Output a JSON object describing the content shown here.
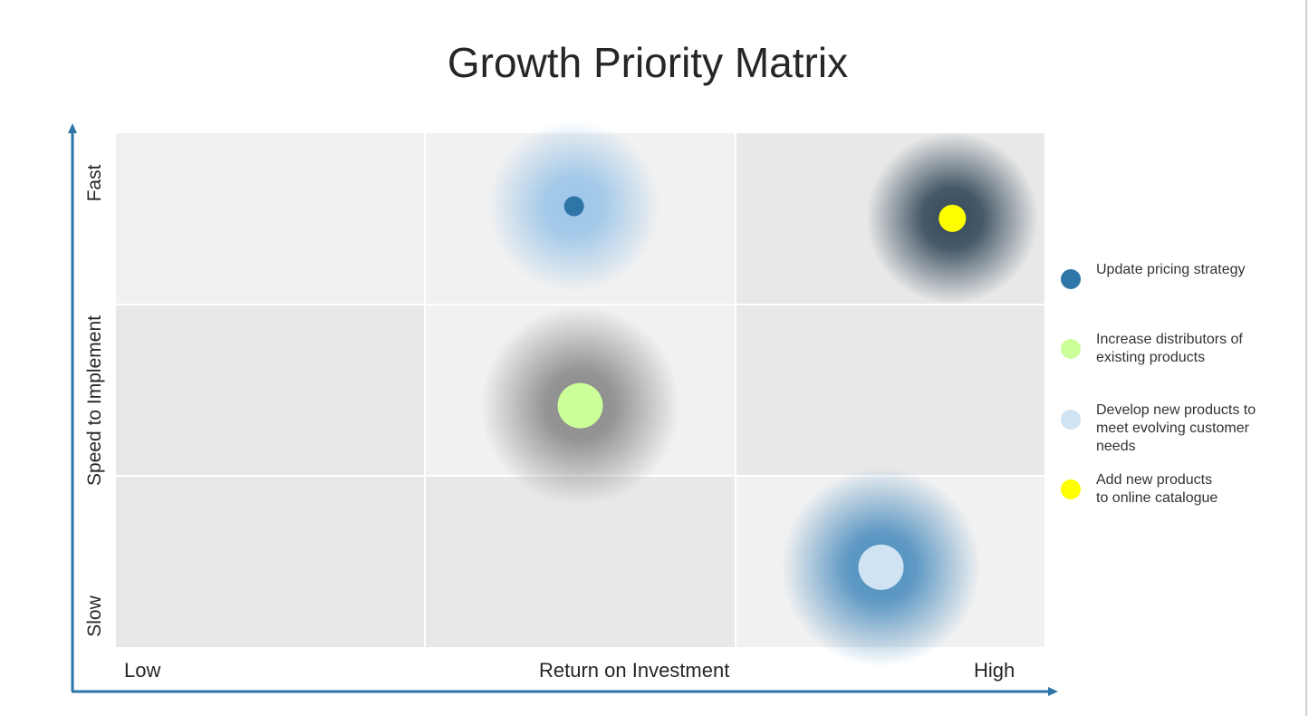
{
  "chart_data": {
    "type": "scatter",
    "title": "Growth Priority Matrix",
    "xlabel": "Return on Investment",
    "ylabel": "Speed to Implement",
    "x_tick_labels": [
      "Low",
      "High"
    ],
    "y_tick_labels": [
      "Slow",
      "Fast"
    ],
    "xlim": [
      0,
      3
    ],
    "ylim": [
      0,
      3
    ],
    "grid": "3x3",
    "legend_position": "right",
    "series": [
      {
        "name": "Update pricing strategy",
        "x": 1.48,
        "y": 2.57,
        "size": 11,
        "color": "#2e75a8",
        "halo_color": "#9dc6e8"
      },
      {
        "name": "Increase distributors of existing products",
        "x": 1.5,
        "y": 1.41,
        "size": 25,
        "color": "#ccff99",
        "halo_color": "#8a8a8a"
      },
      {
        "name": "Develop new products to meet evolving customer needs",
        "x": 2.47,
        "y": 0.47,
        "size": 25,
        "color": "#cfe3f3",
        "halo_color": "#4f8fbf"
      },
      {
        "name": "Add new products to online catalogue",
        "x": 2.7,
        "y": 2.5,
        "size": 15,
        "color": "#ffff00",
        "halo_color": "#34495a"
      }
    ]
  },
  "colors": {
    "axis": "#2e75a8",
    "cell_light": "#f1f1f1",
    "cell_dark": "#e8e8e8"
  }
}
